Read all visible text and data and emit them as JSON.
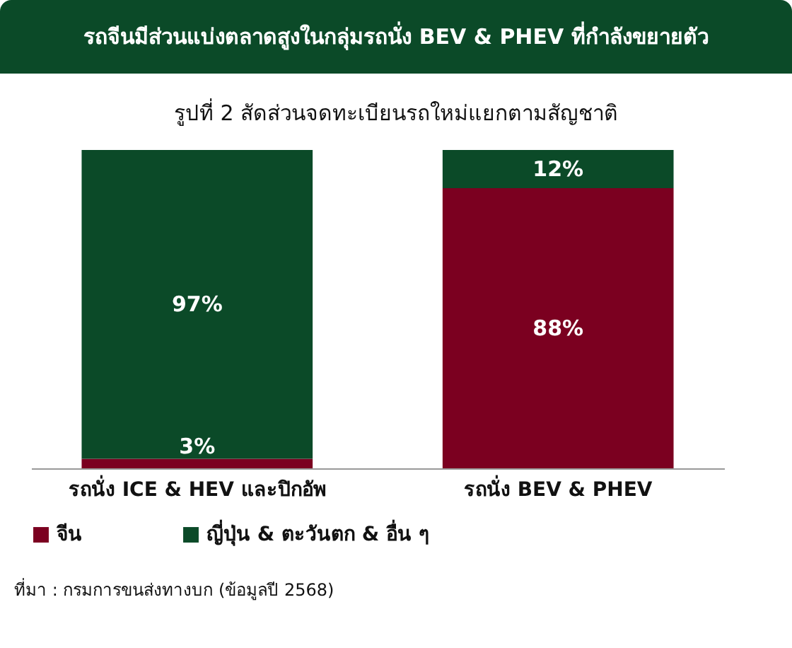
{
  "chart_data": {
    "type": "bar",
    "title": "รถจีนมีส่วนแบ่งตลาดสูงในกลุ่มรถนั่ง BEV & PHEV ที่กำลังขยายตัว",
    "subtitle": "รูปที่ 2 สัดส่วนจดทะเบียนรถใหม่แยกตามสัญชาติ",
    "categories": [
      "รถนั่ง ICE & HEV และปิกอัพ",
      "รถนั่ง BEV & PHEV"
    ],
    "stacked": true,
    "legend": "bottom",
    "series": [
      {
        "name": "จีน",
        "color": "#7b0020",
        "values": [
          3,
          88
        ],
        "value_labels": [
          "3%",
          "88%"
        ]
      },
      {
        "name": "ญี่ปุ่น & ตะวันตก & อื่น ๆ",
        "color": "#0b4a28",
        "values": [
          97,
          12
        ],
        "value_labels": [
          "97%",
          "12%"
        ]
      }
    ],
    "annotations": [
      "ที่มา : กรมการขนส่งทางบก (ข้อมูลปี 2568)"
    ]
  }
}
